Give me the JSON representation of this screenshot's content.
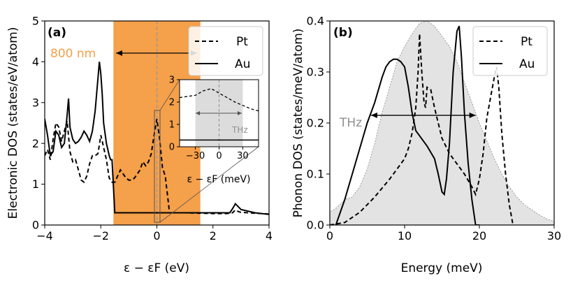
{
  "chart_data": [
    {
      "type": "line",
      "panel_label": "(a)",
      "xlabel": "ε − εF (eV)",
      "ylabel": "Electronic DOS (states/eV/atom)",
      "xlim": [
        -4,
        4
      ],
      "ylim": [
        0,
        5
      ],
      "xticks": [
        -4,
        -2,
        0,
        2,
        4
      ],
      "yticks": [
        0,
        1,
        2,
        3,
        4,
        5
      ],
      "legend": [
        "Pt",
        "Au"
      ],
      "legend_position": "top-right",
      "band": {
        "from": -1.55,
        "to": 1.55,
        "color": "#f5a04a",
        "label": "800 nm",
        "label_color": "#f5a04a"
      },
      "fermi_line": 0,
      "series": [
        {
          "name": "Pt",
          "style": "dashed",
          "x": [
            -4,
            -3.9,
            -3.8,
            -3.7,
            -3.6,
            -3.5,
            -3.4,
            -3.3,
            -3.2,
            -3.1,
            -3.0,
            -2.9,
            -2.8,
            -2.7,
            -2.6,
            -2.5,
            -2.4,
            -2.3,
            -2.2,
            -2.1,
            -2.0,
            -1.9,
            -1.8,
            -1.7,
            -1.6,
            -1.5,
            -1.4,
            -1.3,
            -1.2,
            -1.1,
            -1.0,
            -0.9,
            -0.8,
            -0.7,
            -0.6,
            -0.5,
            -0.4,
            -0.3,
            -0.2,
            -0.1,
            0.0,
            0.1,
            0.2,
            0.3,
            0.35,
            0.4,
            0.45,
            0.5,
            1.0,
            1.5,
            2.0,
            2.5,
            2.7,
            2.8,
            2.9,
            3.0,
            3.5,
            4.0
          ],
          "y": [
            1.7,
            1.85,
            1.6,
            2.1,
            2.5,
            2.4,
            2.05,
            2.3,
            2.55,
            1.8,
            1.55,
            1.6,
            1.35,
            1.1,
            1.05,
            1.2,
            1.5,
            1.7,
            1.7,
            1.75,
            2.2,
            1.9,
            1.6,
            1.15,
            1.05,
            1.05,
            1.2,
            1.35,
            1.25,
            1.15,
            1.1,
            1.1,
            1.15,
            1.25,
            1.35,
            1.55,
            1.45,
            1.55,
            1.75,
            2.2,
            2.6,
            2.1,
            1.4,
            1.2,
            0.9,
            0.6,
            0.3,
            0.3,
            0.3,
            0.29,
            0.28,
            0.28,
            0.3,
            0.37,
            0.33,
            0.31,
            0.29,
            0.27
          ]
        },
        {
          "name": "Au",
          "style": "solid",
          "x": [
            -4,
            -3.9,
            -3.8,
            -3.7,
            -3.6,
            -3.5,
            -3.4,
            -3.3,
            -3.2,
            -3.15,
            -3.1,
            -3.0,
            -2.9,
            -2.8,
            -2.7,
            -2.6,
            -2.5,
            -2.4,
            -2.3,
            -2.2,
            -2.1,
            -2.05,
            -2.0,
            -1.95,
            -1.9,
            -1.8,
            -1.7,
            -1.65,
            -1.6,
            -1.5,
            0.0,
            1.0,
            2.0,
            2.6,
            2.7,
            2.8,
            3.0,
            3.5,
            4.0
          ],
          "y": [
            2.6,
            2.2,
            1.7,
            1.8,
            2.3,
            2.2,
            1.9,
            2.0,
            2.7,
            3.1,
            2.4,
            2.1,
            2.0,
            2.05,
            2.15,
            2.3,
            2.2,
            2.05,
            2.3,
            2.8,
            3.6,
            4.0,
            3.7,
            3.2,
            2.5,
            2.0,
            1.7,
            1.6,
            1.6,
            0.3,
            0.3,
            0.3,
            0.3,
            0.3,
            0.4,
            0.52,
            0.38,
            0.3,
            0.26
          ]
        }
      ],
      "inset": {
        "xlabel": "ε − εF (meV)",
        "xlim": [
          -50,
          50
        ],
        "ylim": [
          0,
          3
        ],
        "xticks": [
          -30,
          0,
          30
        ],
        "yticks": [
          0,
          1,
          2,
          3
        ],
        "band": {
          "from": -30,
          "to": 30,
          "color": "#dcdcdc",
          "label": "THz",
          "label_color": "#909090"
        },
        "series": [
          {
            "name": "Pt",
            "style": "dashed",
            "x": [
              -50,
              -40,
              -30,
              -20,
              -10,
              0,
              10,
              20,
              30,
              40,
              50
            ],
            "y": [
              2.2,
              2.25,
              2.3,
              2.5,
              2.6,
              2.4,
              2.2,
              2.0,
              1.85,
              1.7,
              1.6
            ]
          },
          {
            "name": "Au",
            "style": "solid",
            "x": [
              -50,
              50
            ],
            "y": [
              0.3,
              0.3
            ]
          }
        ]
      }
    },
    {
      "type": "line",
      "panel_label": "(b)",
      "xlabel": "Energy (meV)",
      "ylabel": "Phonon DOS (states/meV/atom)",
      "xlim": [
        0,
        30
      ],
      "ylim": [
        0,
        0.4
      ],
      "xticks": [
        0,
        10,
        20,
        30
      ],
      "yticks": [
        0.0,
        0.1,
        0.2,
        0.3,
        0.4
      ],
      "legend": [
        "Pt",
        "Au"
      ],
      "legend_position": "top-right",
      "band": {
        "label": "THz",
        "from": 5.5,
        "to": 19.5,
        "label_color": "#909090"
      },
      "series": [
        {
          "name": "Envelope",
          "style": "area",
          "color": "#e3e3e3",
          "x": [
            0,
            1,
            2,
            3,
            4,
            5,
            6,
            7,
            8,
            9,
            10,
            11,
            12,
            13,
            14,
            15,
            16,
            17,
            18,
            19,
            20,
            21,
            22,
            23,
            24,
            25,
            26,
            27,
            28,
            29,
            30
          ],
          "y": [
            0.025,
            0.035,
            0.05,
            0.055,
            0.075,
            0.11,
            0.16,
            0.22,
            0.27,
            0.32,
            0.35,
            0.375,
            0.395,
            0.4,
            0.39,
            0.37,
            0.35,
            0.32,
            0.28,
            0.24,
            0.2,
            0.165,
            0.13,
            0.1,
            0.075,
            0.055,
            0.04,
            0.03,
            0.02,
            0.012,
            0.007
          ]
        },
        {
          "name": "Pt",
          "style": "dashed",
          "x": [
            0,
            2,
            4,
            6,
            8,
            9,
            10,
            10.5,
            11,
            11.5,
            11.8,
            12.0,
            12.3,
            12.6,
            12.8,
            13.0,
            13.5,
            14.0,
            14.5,
            15,
            16,
            17,
            18,
            19,
            19.5,
            20.0,
            20.5,
            21.0,
            21.5,
            22.0,
            22.3,
            22.6,
            23.0,
            23.5,
            24.0,
            24.5
          ],
          "y": [
            0.0,
            0.005,
            0.025,
            0.055,
            0.09,
            0.11,
            0.13,
            0.15,
            0.18,
            0.23,
            0.3,
            0.375,
            0.3,
            0.24,
            0.23,
            0.27,
            0.265,
            0.23,
            0.2,
            0.17,
            0.14,
            0.12,
            0.1,
            0.075,
            0.06,
            0.09,
            0.14,
            0.21,
            0.25,
            0.29,
            0.31,
            0.27,
            0.18,
            0.1,
            0.04,
            0.0
          ]
        },
        {
          "name": "Au",
          "style": "solid",
          "x": [
            0.8,
            2,
            3,
            4,
            5,
            6,
            7,
            7.5,
            8,
            8.5,
            9,
            9.5,
            10,
            10.5,
            11,
            11.5,
            12,
            13,
            14,
            14.5,
            15,
            15.3,
            15.6,
            16,
            16.5,
            17,
            17.3,
            17.6,
            18,
            18.5,
            19,
            19.5,
            20
          ],
          "y": [
            0.0,
            0.05,
            0.1,
            0.15,
            0.2,
            0.24,
            0.29,
            0.31,
            0.32,
            0.325,
            0.325,
            0.32,
            0.31,
            0.27,
            0.22,
            0.185,
            0.175,
            0.155,
            0.13,
            0.1,
            0.065,
            0.06,
            0.09,
            0.16,
            0.3,
            0.38,
            0.39,
            0.33,
            0.22,
            0.12,
            0.05,
            0.0,
            0.0
          ]
        }
      ]
    }
  ]
}
